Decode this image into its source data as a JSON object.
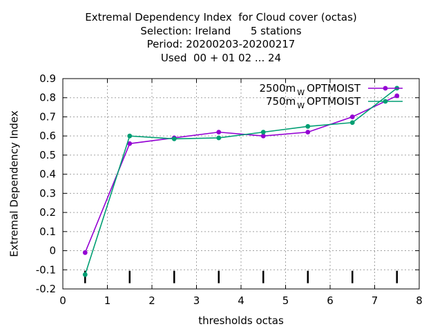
{
  "title_lines": [
    "Extremal Dependency Index  for Cloud cover (octas)",
    "Selection: Ireland      5 stations",
    "Period: 20200203-20200217",
    "Used  00 + 01 02 ... 24"
  ],
  "chart_data": {
    "type": "line",
    "xlabel": "thresholds octas",
    "ylabel": "Extremal Dependency Index",
    "xlim": [
      0,
      8
    ],
    "ylim": [
      -0.2,
      0.9
    ],
    "xticks": [
      "0",
      "1",
      "2",
      "3",
      "4",
      "5",
      "6",
      "7",
      "8"
    ],
    "yticks": [
      "-0.2",
      "-0.1",
      "0",
      "0.1",
      "0.2",
      "0.3",
      "0.4",
      "0.5",
      "0.6",
      "0.7",
      "0.8",
      "0.9"
    ],
    "grid": true,
    "legend_position": "top-right",
    "x": [
      0.5,
      1.5,
      2.5,
      3.5,
      4.5,
      5.5,
      6.5,
      7.5
    ],
    "series": [
      {
        "name_main": "2500m",
        "name_sub": "W",
        "name_tail": "OPTMOIST",
        "color": "#9400d3",
        "values": [
          -0.01,
          0.56,
          0.59,
          0.62,
          0.6,
          0.62,
          0.7,
          0.81
        ]
      },
      {
        "name_main": "750m",
        "name_sub": "W",
        "name_tail": "OPTMOIST",
        "color": "#009e73",
        "values": [
          -0.125,
          0.6,
          0.585,
          0.59,
          0.62,
          0.65,
          0.67,
          0.85
        ]
      }
    ]
  }
}
